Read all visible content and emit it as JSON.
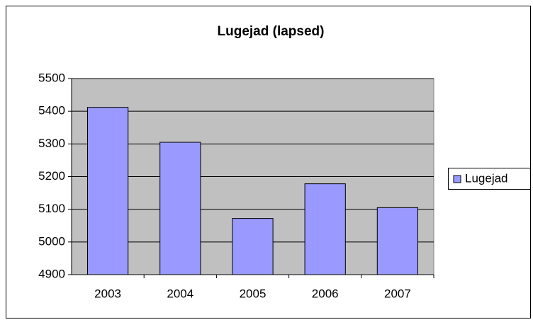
{
  "chart_data": {
    "type": "bar",
    "title": "Lugejad (lapsed)",
    "categories": [
      "2003",
      "2004",
      "2005",
      "2006",
      "2007"
    ],
    "series": [
      {
        "name": "Lugejad",
        "color": "#9999ff",
        "values": [
          5412,
          5305,
          5072,
          5178,
          5105
        ]
      }
    ],
    "ylim": [
      4900,
      5500
    ],
    "yticks": [
      4900,
      5000,
      5100,
      5200,
      5300,
      5400,
      5500
    ],
    "grid": true,
    "legend": "right"
  }
}
